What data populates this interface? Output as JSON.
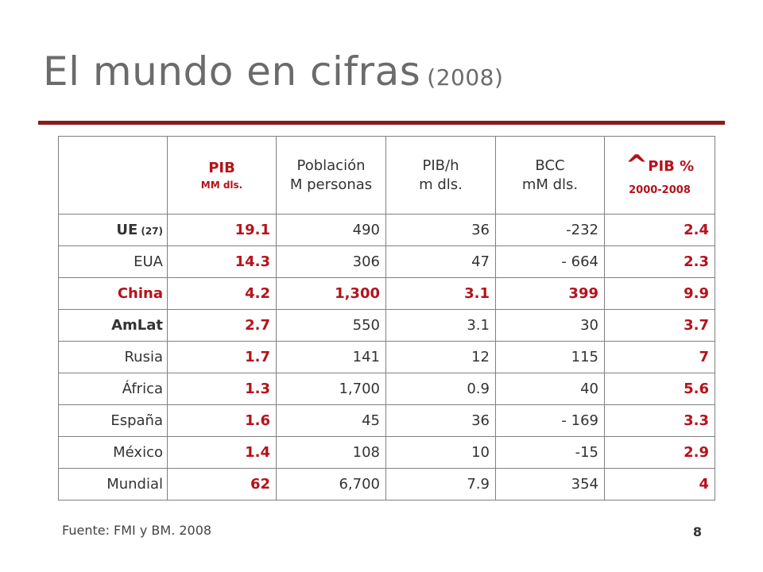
{
  "slide": {
    "title": "El mundo en cifras",
    "title_year": "(2008)",
    "source": "Fuente: FMI y BM.  2008",
    "page_number": "8"
  },
  "table": {
    "headers": [
      {
        "line1": "",
        "line2": ""
      },
      {
        "line1": "PIB",
        "line2": "MM dls."
      },
      {
        "line1": "Población",
        "line2": "M personas"
      },
      {
        "line1": "PIB/h",
        "line2": "m dls."
      },
      {
        "line1": "BCC",
        "line2": "mM dls."
      },
      {
        "caret": "^",
        "line1": "PIB %",
        "line2": "2000-2008"
      }
    ],
    "rows": [
      {
        "name": "UE",
        "note": "(27)",
        "pib": "19.1",
        "poblacion": "490",
        "pibh": "36",
        "bcc": "-232",
        "crec": "2.4"
      },
      {
        "name": "EUA",
        "pib": "14.3",
        "poblacion": "306",
        "pibh": "47",
        "bcc": "- 664",
        "crec": "2.3"
      },
      {
        "name": "China",
        "pib": "4.2",
        "poblacion": "1,300",
        "pibh": "3.1",
        "bcc": "399",
        "crec": "9.9"
      },
      {
        "name": "AmLat",
        "pib": "2.7",
        "poblacion": "550",
        "pibh": "3.1",
        "bcc": "30",
        "crec": "3.7"
      },
      {
        "name": "Rusia",
        "pib": "1.7",
        "poblacion": "141",
        "pibh": "12",
        "bcc": "115",
        "crec": "7"
      },
      {
        "name": "África",
        "pib": "1.3",
        "poblacion": "1,700",
        "pibh": "0.9",
        "bcc": "40",
        "crec": "5.6"
      },
      {
        "name": "España",
        "pib": "1.6",
        "poblacion": "45",
        "pibh": "36",
        "bcc": "- 169",
        "crec": "3.3"
      },
      {
        "name": "México",
        "pib": "1.4",
        "poblacion": "108",
        "pibh": "10",
        "bcc": "-15",
        "crec": "2.9"
      },
      {
        "name": "Mundial",
        "pib": "62",
        "poblacion": "6,700",
        "pibh": "7.9",
        "bcc": "354",
        "crec": "4"
      }
    ]
  },
  "colors": {
    "accent_red": "#b5121b",
    "rule": "#8b1a1a",
    "title_gray": "#6b6b6b"
  }
}
